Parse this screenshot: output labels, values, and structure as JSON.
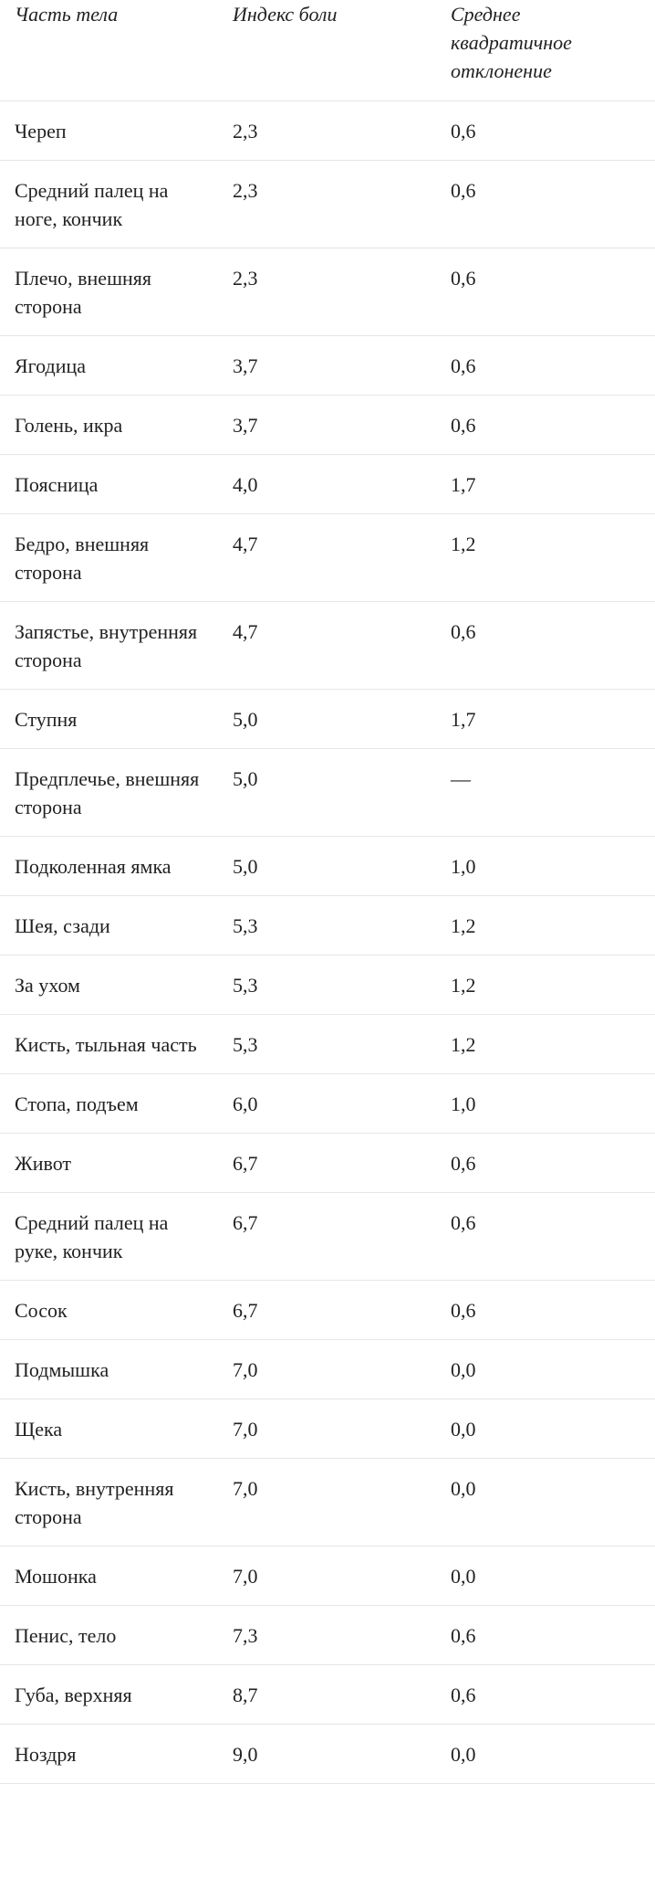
{
  "table": {
    "header": [
      "Часть тела",
      "Индекс боли",
      "Среднее квадратичное отклонение"
    ],
    "rows": [
      [
        "Череп",
        "2,3",
        "0,6"
      ],
      [
        "Средний палец на ноге, кончик",
        "2,3",
        "0,6"
      ],
      [
        "Плечо, внешняя сторона",
        "2,3",
        "0,6"
      ],
      [
        "Ягодица",
        "3,7",
        "0,6"
      ],
      [
        "Голень, икра",
        "3,7",
        "0,6"
      ],
      [
        "Поясница",
        "4,0",
        "1,7"
      ],
      [
        "Бедро, внешняя сторона",
        "4,7",
        "1,2"
      ],
      [
        "Запястье, внутренняя сторона",
        "4,7",
        "0,6"
      ],
      [
        "Ступня",
        "5,0",
        "1,7"
      ],
      [
        "Предплечье, внешняя сторона",
        "5,0",
        "—"
      ],
      [
        "Подколенная ямка",
        "5,0",
        "1,0"
      ],
      [
        "Шея, сзади",
        "5,3",
        "1,2"
      ],
      [
        "За ухом",
        "5,3",
        "1,2"
      ],
      [
        "Кисть, тыльная часть",
        "5,3",
        "1,2"
      ],
      [
        "Стопа, подъем",
        "6,0",
        "1,0"
      ],
      [
        "Живот",
        "6,7",
        "0,6"
      ],
      [
        "Средний палец на руке, кончик",
        "6,7",
        "0,6"
      ],
      [
        "Сосок",
        "6,7",
        "0,6"
      ],
      [
        "Подмышка",
        "7,0",
        "0,0"
      ],
      [
        "Щека",
        "7,0",
        "0,0"
      ],
      [
        "Кисть, внутренняя сторона",
        "7,0",
        "0,0"
      ],
      [
        "Мошонка",
        "7,0",
        "0,0"
      ],
      [
        "Пенис, тело",
        "7,3",
        "0,6"
      ],
      [
        "Губа, верхняя",
        "8,7",
        "0,6"
      ],
      [
        "Ноздря",
        "9,0",
        "0,0"
      ]
    ]
  }
}
